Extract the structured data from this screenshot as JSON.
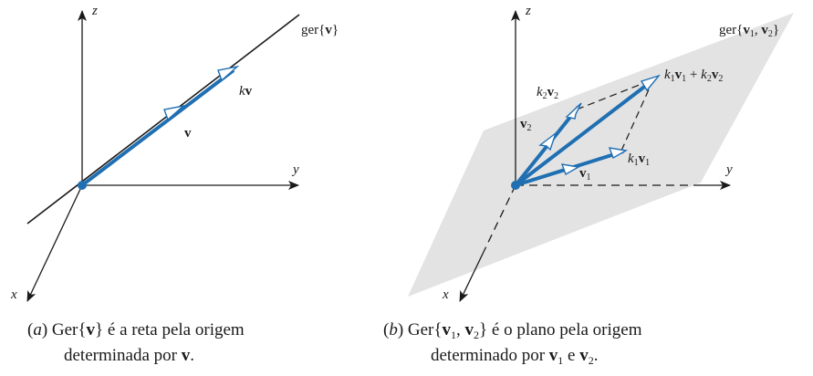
{
  "panel_a": {
    "axis_z": "z",
    "axis_y": "y",
    "axis_x": "x",
    "span_label_prefix": "ger{",
    "span_label_vec": "v",
    "span_label_suffix": "}",
    "scalar_k": "k",
    "vec_v": "v",
    "caption": {
      "tag": "a",
      "text_before": "Ger{",
      "vec": "v",
      "text_after": "} é a reta pela origem",
      "line2_before": "determinada por ",
      "line2_vec": "v",
      "line2_after": "."
    }
  },
  "panel_b": {
    "axis_z": "z",
    "axis_y": "y",
    "axis_x": "x",
    "span_label": {
      "prefix": "ger{",
      "v1": "v",
      "sub1": "1",
      "comma": ", ",
      "v2": "v",
      "sub2": "2",
      "suffix": "}"
    },
    "label_v1": {
      "vec": "v",
      "sub": "1"
    },
    "label_v2": {
      "vec": "v",
      "sub": "2"
    },
    "label_k1v1": {
      "k": "k",
      "ksub": "1",
      "vec": "v",
      "vsub": "1"
    },
    "label_k2v2": {
      "k": "k",
      "ksub": "2",
      "vec": "v",
      "vsub": "2"
    },
    "label_sum": {
      "k1": "k",
      "k1sub": "1",
      "v1": "v",
      "v1sub": "1",
      "plus": " + ",
      "k2": "k",
      "k2sub": "2",
      "v2": "v",
      "v2sub": "2"
    },
    "caption": {
      "tag": "b",
      "text_before": "Ger{",
      "v1": "v",
      "sub1": "1",
      "comma": ", ",
      "v2": "v",
      "sub2": "2",
      "text_after": "} é o plano pela origem",
      "line2_before": "determinado por ",
      "line2_v1": "v",
      "line2_sub1": "1",
      "line2_mid": " e ",
      "line2_v2": "v",
      "line2_sub2": "2",
      "line2_after": "."
    }
  },
  "colors": {
    "vector_blue": "#1f6fb2",
    "axis_black": "#1a1a1a",
    "plane_gray": "#e3e3e3"
  }
}
